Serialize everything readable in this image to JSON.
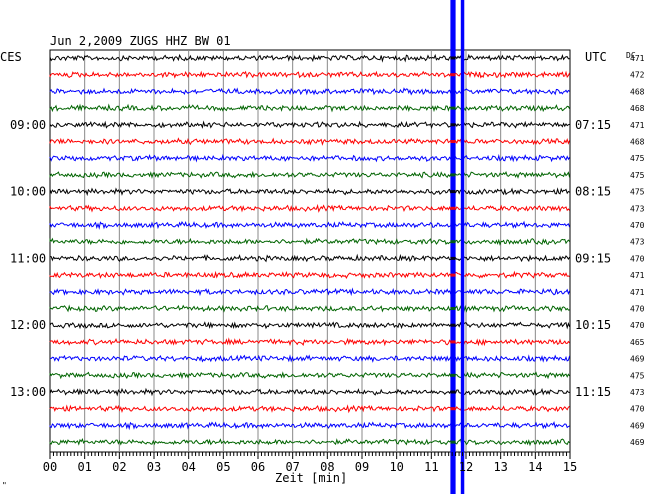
{
  "header": {
    "left_label": "CES",
    "title": "Jun 2,2009   ZUGS HHZ BW 01",
    "right_label": "UTC",
    "dc_label": "DC"
  },
  "footer": {
    "xlabel": "Zeit [min]",
    "corner_mark": "\""
  },
  "colors": {
    "trace_cycle": [
      "#000000",
      "#ff0000",
      "#0000ff",
      "#006400"
    ],
    "event_band": "#0000ff",
    "grid": "#888888"
  },
  "chart_data": {
    "type": "line",
    "title": "Jun 2,2009   ZUGS HHZ BW 01",
    "xlabel": "Zeit [min]",
    "xlim": [
      0,
      15
    ],
    "x_ticks": [
      "00",
      "01",
      "02",
      "03",
      "04",
      "05",
      "06",
      "07",
      "08",
      "09",
      "10",
      "11",
      "12",
      "13",
      "14",
      "15"
    ],
    "rows": 24,
    "left_time_labels": [
      {
        "row": 4,
        "label": "09:00"
      },
      {
        "row": 8,
        "label": "10:00"
      },
      {
        "row": 12,
        "label": "11:00"
      },
      {
        "row": 16,
        "label": "12:00"
      },
      {
        "row": 20,
        "label": "13:00"
      }
    ],
    "right_time_labels": [
      {
        "row": 4,
        "label": "07:15"
      },
      {
        "row": 8,
        "label": "08:15"
      },
      {
        "row": 12,
        "label": "09:15"
      },
      {
        "row": 16,
        "label": "10:15"
      },
      {
        "row": 20,
        "label": "11:15"
      }
    ],
    "dc_values": [
      "471",
      "472",
      "468",
      "468",
      "471",
      "468",
      "475",
      "475",
      "475",
      "473",
      "470",
      "473",
      "470",
      "471",
      "471",
      "470",
      "470",
      "465",
      "469",
      "475",
      "473",
      "470",
      "469",
      "469"
    ],
    "event_window_minutes": [
      11.55,
      11.7
    ],
    "event_secondary_minutes": [
      11.85,
      11.95
    ]
  }
}
